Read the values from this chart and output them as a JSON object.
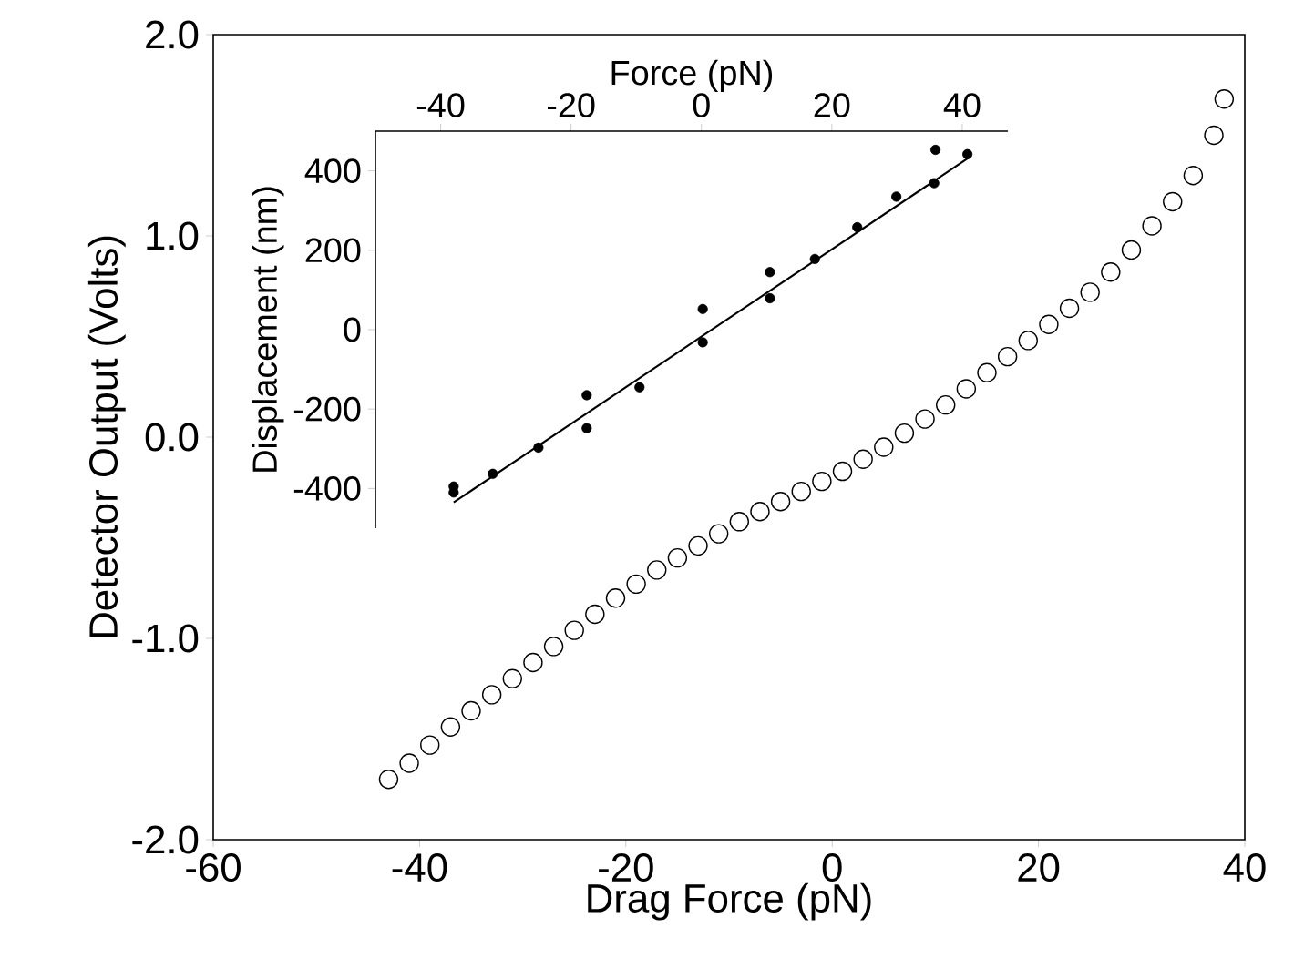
{
  "chart_data": [
    {
      "type": "scatter",
      "xlabel": "Drag Force (pN)",
      "ylabel": "Detector Output (Volts)",
      "marker": "circle",
      "xlim": [
        -60,
        40
      ],
      "ylim": [
        -2,
        2
      ],
      "xticks": [
        -60,
        -40,
        -20,
        0,
        20,
        40
      ],
      "yticks": [
        {
          "value": -2,
          "label": "-2.0"
        },
        {
          "value": -1,
          "label": "-1.0"
        },
        {
          "value": 0,
          "label": "0.0"
        },
        {
          "value": 1,
          "label": "1.0"
        },
        {
          "value": 2,
          "label": "2.0"
        }
      ],
      "series": [
        {
          "color": "#000000",
          "x": [
            -43,
            -41,
            -39,
            -37,
            -35,
            -33,
            -31,
            -29,
            -27,
            -25,
            -23,
            -21,
            -19,
            -17,
            -15,
            -13,
            -11,
            -9,
            -7,
            -5,
            -3,
            -1,
            1,
            3,
            5,
            7,
            9,
            11,
            13,
            15,
            17,
            19,
            21,
            23,
            25,
            27,
            29,
            31,
            33,
            35,
            37,
            38
          ],
          "values": [
            -1.7,
            -1.62,
            -1.53,
            -1.44,
            -1.36,
            -1.28,
            -1.2,
            -1.12,
            -1.04,
            -0.96,
            -0.88,
            -0.8,
            -0.73,
            -0.66,
            -0.6,
            -0.54,
            -0.48,
            -0.42,
            -0.37,
            -0.32,
            -0.27,
            -0.22,
            -0.17,
            -0.11,
            -0.05,
            0.02,
            0.09,
            0.16,
            0.24,
            0.32,
            0.4,
            0.48,
            0.56,
            0.64,
            0.72,
            0.82,
            0.93,
            1.05,
            1.17,
            1.3,
            1.5,
            1.68
          ]
        }
      ]
    },
    {
      "type": "scatter",
      "xlabel": "Force (pN)",
      "ylabel": "Displacement (nm)",
      "marker": "circle",
      "xlim": [
        -50,
        47
      ],
      "ylim": [
        -500,
        500
      ],
      "xticks": [
        -40,
        -20,
        0,
        20,
        40
      ],
      "yticks": [
        -400,
        -200,
        0,
        200,
        400
      ],
      "series": [
        {
          "color": "#000000",
          "x": [
            -38,
            -38,
            -32,
            -25,
            -17.6,
            -17.6,
            -9.5,
            0.2,
            0.2,
            10.5,
            10.5,
            17.4,
            23.9,
            29.9,
            35.7,
            35.9,
            40.8
          ],
          "values": [
            -395,
            -410,
            -363,
            -297,
            -165,
            -248,
            -145,
            52,
            -32,
            145,
            79,
            178,
            258,
            335,
            369,
            453,
            442
          ]
        },
        {
          "type": "line",
          "marker": "none",
          "color": "#000000",
          "x": [
            -38,
            41
          ],
          "values": [
            -435,
            433
          ]
        }
      ]
    }
  ]
}
